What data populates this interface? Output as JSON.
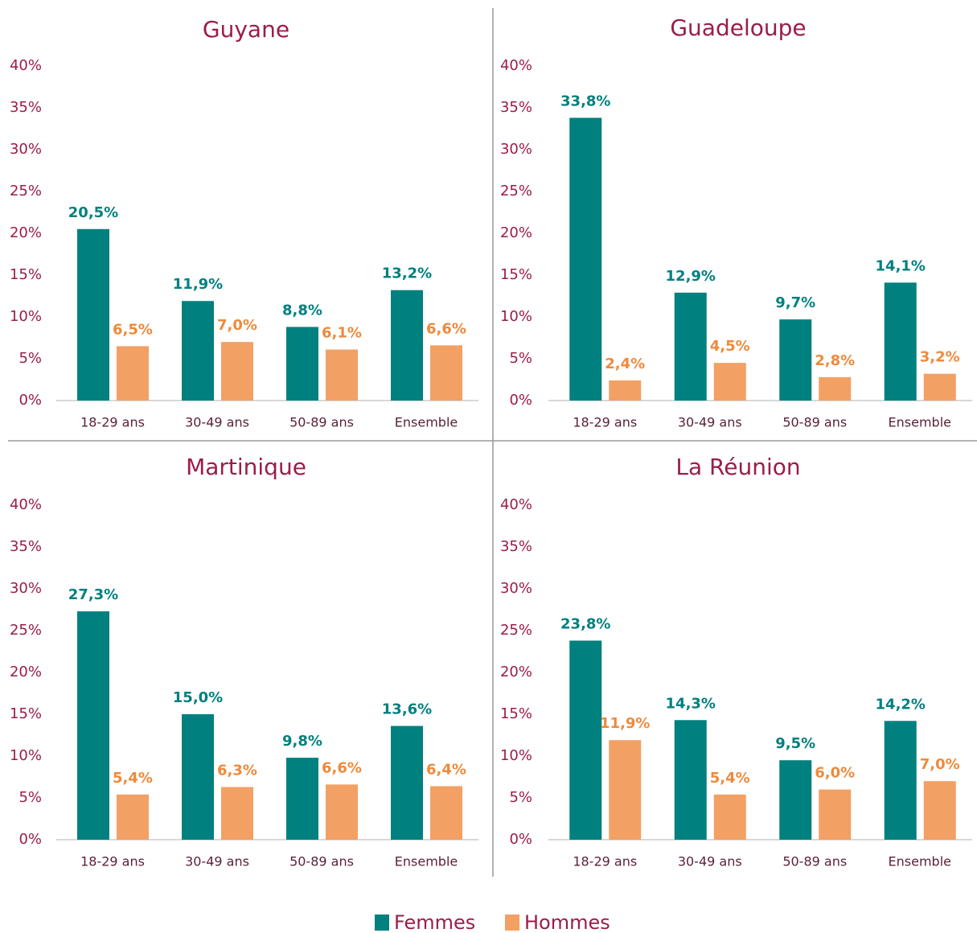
{
  "chart_data": [
    {
      "type": "bar",
      "title": "Guyane",
      "categories": [
        "18-29 ans",
        "30-49 ans",
        "50-89 ans",
        "Ensemble"
      ],
      "series": [
        {
          "name": "Femmes",
          "color": "#00807f",
          "values": [
            20.5,
            11.9,
            8.8,
            13.2
          ],
          "value_labels": [
            "20,5%",
            "11,9%",
            "8,8%",
            "13,2%"
          ]
        },
        {
          "name": "Hommes",
          "color": "#f2a064",
          "values": [
            6.5,
            7.0,
            6.1,
            6.6
          ],
          "value_labels": [
            "6,5%",
            "7,0%",
            "6,1%",
            "6,6%"
          ]
        }
      ],
      "ylim": [
        0,
        40
      ],
      "yticks": [
        {
          "value": 0,
          "label": "0%"
        },
        {
          "value": 5,
          "label": "5%"
        },
        {
          "value": 10,
          "label": "10%"
        },
        {
          "value": 15,
          "label": "15%"
        },
        {
          "value": 20,
          "label": "20%"
        },
        {
          "value": 25,
          "label": "25%"
        },
        {
          "value": 30,
          "label": "30%"
        },
        {
          "value": 35,
          "label": "35%"
        },
        {
          "value": 40,
          "label": "40%"
        }
      ]
    },
    {
      "type": "bar",
      "title": "Guadeloupe",
      "categories": [
        "18-29 ans",
        "30-49 ans",
        "50-89 ans",
        "Ensemble"
      ],
      "series": [
        {
          "color": "#00807f",
          "values": [
            33.8,
            12.9,
            9.7,
            14.1
          ],
          "value_labels": [
            "33,8%",
            "12,9%",
            "9,7%",
            "14,1%"
          ]
        },
        {
          "color": "#f2a064",
          "values": [
            2.4,
            4.5,
            2.8,
            3.2
          ],
          "value_labels": [
            "2,4%",
            "4,5%",
            "2,8%",
            "3,2%"
          ]
        }
      ],
      "ylim": [
        0,
        40
      ],
      "yticks": [
        {
          "value": 0,
          "label": "0%"
        },
        {
          "value": 5,
          "label": "5%"
        },
        {
          "value": 10,
          "label": "10%"
        },
        {
          "value": 15,
          "label": "15%"
        },
        {
          "value": 20,
          "label": "20%"
        },
        {
          "value": 25,
          "label": "25%"
        },
        {
          "value": 30,
          "label": "30%"
        },
        {
          "value": 35,
          "label": "35%"
        },
        {
          "value": 40,
          "label": "40%"
        }
      ]
    },
    {
      "type": "bar",
      "title": "Martinique",
      "categories": [
        "18-29 ans",
        "30-49 ans",
        "50-89 ans",
        "Ensemble"
      ],
      "series": [
        {
          "color": "#00807f",
          "values": [
            27.3,
            15.0,
            9.8,
            13.6
          ],
          "value_labels": [
            "27,3%",
            "15,0%",
            "9,8%",
            "13,6%"
          ]
        },
        {
          "color": "#f2a064",
          "values": [
            5.4,
            6.3,
            6.6,
            6.4
          ],
          "value_labels": [
            "5,4%",
            "6,3%",
            "6,6%",
            "6,4%"
          ]
        }
      ],
      "ylim": [
        0,
        40
      ],
      "yticks": [
        {
          "value": 0,
          "label": "0%"
        },
        {
          "value": 5,
          "label": "5%"
        },
        {
          "value": 10,
          "label": "10%"
        },
        {
          "value": 15,
          "label": "15%"
        },
        {
          "value": 20,
          "label": "20%"
        },
        {
          "value": 25,
          "label": "25%"
        },
        {
          "value": 30,
          "label": "30%"
        },
        {
          "value": 35,
          "label": "35%"
        },
        {
          "value": 40,
          "label": "40%"
        }
      ]
    },
    {
      "type": "bar",
      "title": "La Réunion",
      "categories": [
        "18-29 ans",
        "30-49 ans",
        "50-89 ans",
        "Ensemble"
      ],
      "series": [
        {
          "color": "#00807f",
          "values": [
            23.8,
            14.3,
            9.5,
            14.2
          ],
          "value_labels": [
            "23,8%",
            "14,3%",
            "9,5%",
            "14,2%"
          ]
        },
        {
          "color": "#f2a064",
          "values": [
            11.9,
            5.4,
            6.0,
            7.0
          ],
          "value_labels": [
            "11,9%",
            "5,4%",
            "6,0%",
            "7,0%"
          ]
        }
      ],
      "ylim": [
        0,
        40
      ],
      "yticks": [
        {
          "value": 0,
          "label": "0%"
        },
        {
          "value": 5,
          "label": "5%"
        },
        {
          "value": 10,
          "label": "10%"
        },
        {
          "value": 15,
          "label": "15%"
        },
        {
          "value": 20,
          "label": "20%"
        },
        {
          "value": 25,
          "label": "25%"
        },
        {
          "value": 30,
          "label": "30%"
        },
        {
          "value": 35,
          "label": "35%"
        },
        {
          "value": 40,
          "label": "40%"
        }
      ]
    }
  ]
}
